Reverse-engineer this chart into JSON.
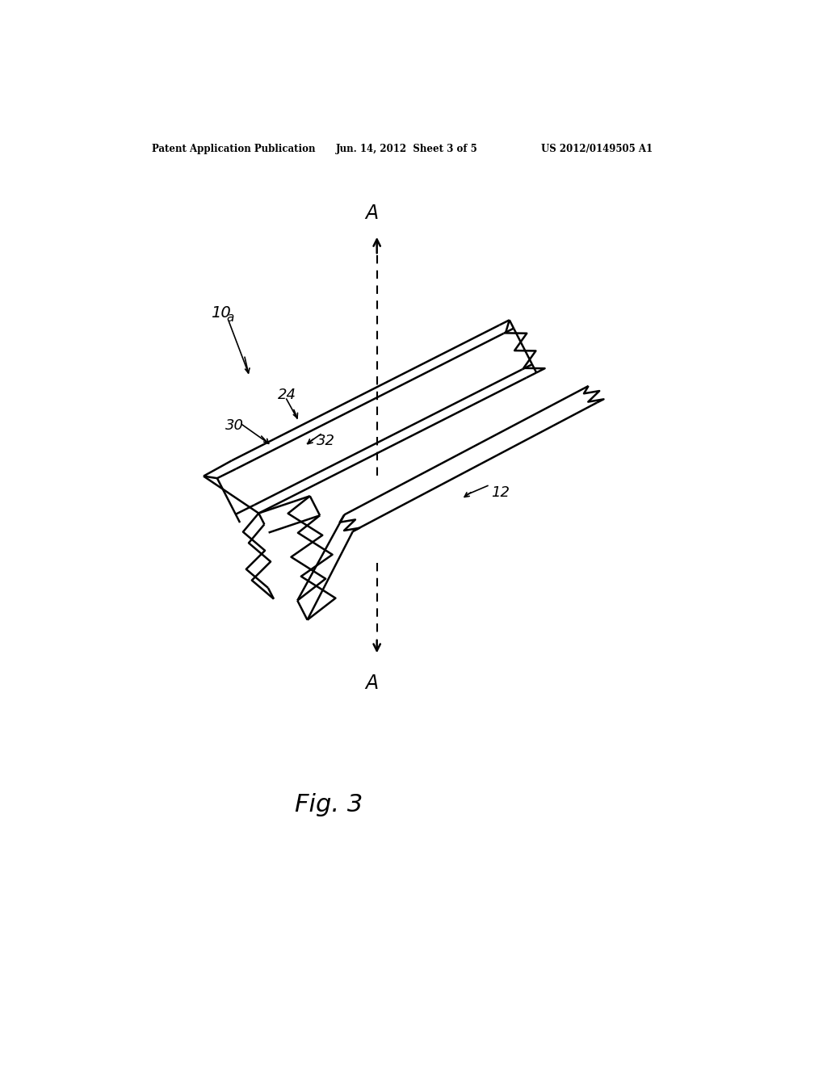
{
  "bg_color": "#ffffff",
  "header_left": "Patent Application Publication",
  "header_mid": "Jun. 14, 2012  Sheet 3 of 5",
  "header_right": "US 2012/0149505 A1",
  "fig_label": "Fig. 3",
  "label_10a": "10a",
  "label_12": "12",
  "label_24": "24",
  "label_30": "30",
  "label_32": "32",
  "label_A_top": "A",
  "label_A_bottom": "A",
  "line_color": "#000000",
  "lw": 1.8,
  "lw_thin": 1.2
}
